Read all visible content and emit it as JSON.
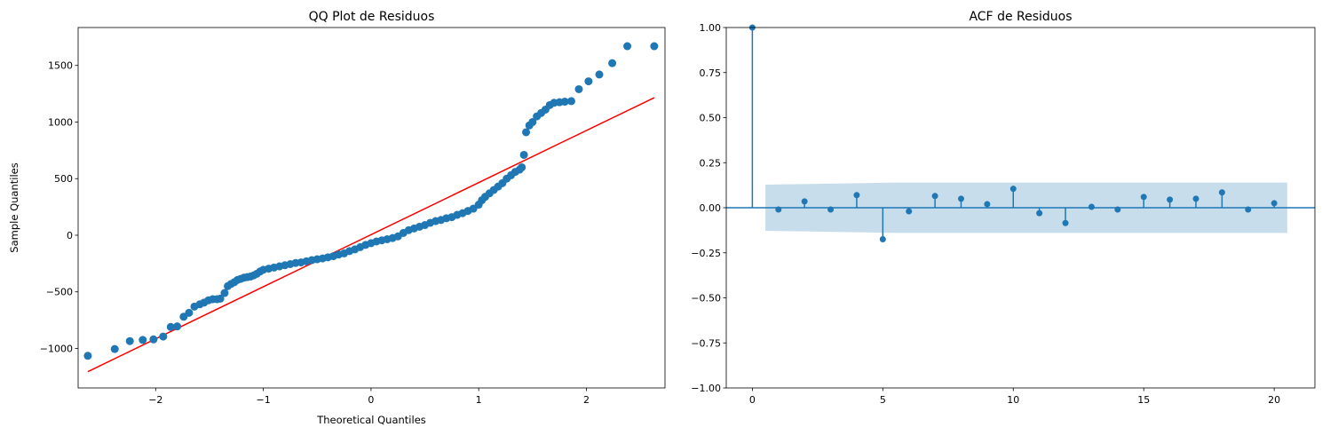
{
  "chart_data": [
    {
      "type": "scatter",
      "title": "QQ Plot de Residuos",
      "x_label": "Theoretical Quantiles",
      "y_label": "Sample Quantiles",
      "color": "#1f77b4",
      "x": [
        -2.63,
        -2.38,
        -2.24,
        -2.12,
        -2.02,
        -1.93,
        -1.86,
        -1.8,
        -1.74,
        -1.69,
        -1.64,
        -1.59,
        -1.55,
        -1.51,
        -1.47,
        -1.43,
        -1.4,
        -1.36,
        -1.33,
        -1.3,
        -1.27,
        -1.24,
        -1.21,
        -1.18,
        -1.15,
        -1.12,
        -1.09,
        -1.06,
        -1.03,
        -1.0,
        -0.95,
        -0.9,
        -0.85,
        -0.8,
        -0.75,
        -0.7,
        -0.65,
        -0.6,
        -0.55,
        -0.5,
        -0.45,
        -0.4,
        -0.35,
        -0.3,
        -0.25,
        -0.2,
        -0.15,
        -0.1,
        -0.05,
        0.0,
        0.05,
        0.1,
        0.15,
        0.2,
        0.25,
        0.3,
        0.35,
        0.4,
        0.45,
        0.5,
        0.55,
        0.6,
        0.65,
        0.7,
        0.75,
        0.8,
        0.85,
        0.9,
        0.95,
        1.0,
        1.03,
        1.06,
        1.1,
        1.14,
        1.18,
        1.22,
        1.26,
        1.3,
        1.34,
        1.38,
        1.4,
        1.42,
        1.44,
        1.47,
        1.5,
        1.54,
        1.58,
        1.62,
        1.66,
        1.7,
        1.75,
        1.8,
        1.86,
        1.93,
        2.02,
        2.12,
        2.24,
        2.38,
        2.63
      ],
      "values": [
        -1065,
        -1005,
        -935,
        -925,
        -920,
        -895,
        -810,
        -805,
        -720,
        -685,
        -630,
        -610,
        -595,
        -575,
        -565,
        -565,
        -560,
        -510,
        -450,
        -430,
        -415,
        -395,
        -385,
        -375,
        -370,
        -365,
        -355,
        -340,
        -320,
        -305,
        -295,
        -285,
        -275,
        -265,
        -255,
        -245,
        -240,
        -230,
        -220,
        -212,
        -205,
        -195,
        -185,
        -170,
        -160,
        -140,
        -125,
        -105,
        -85,
        -70,
        -55,
        -45,
        -35,
        -25,
        -10,
        20,
        45,
        60,
        75,
        90,
        110,
        125,
        135,
        150,
        160,
        180,
        195,
        215,
        235,
        270,
        310,
        340,
        370,
        400,
        430,
        460,
        500,
        530,
        560,
        580,
        600,
        710,
        910,
        970,
        1000,
        1050,
        1080,
        1110,
        1150,
        1170,
        1175,
        1180,
        1185,
        1290,
        1360,
        1420,
        1520,
        1670,
        1670
      ],
      "fit_line": {
        "x": [
          -2.63,
          2.63
        ],
        "values": [
          -1205,
          1215
        ],
        "color": "#ff0000"
      },
      "xlim": [
        -2.72,
        2.73
      ],
      "ylim": [
        -1349,
        1835
      ],
      "xticks": [
        {
          "value": -2,
          "label": "−2"
        },
        {
          "value": -1,
          "label": "−1"
        },
        0,
        1,
        2
      ],
      "yticks": [
        {
          "value": -1000,
          "label": "−1000"
        },
        {
          "value": -500,
          "label": "−500"
        },
        0,
        500,
        1000,
        1500
      ]
    },
    {
      "type": "stem",
      "title": "ACF de Residuos",
      "color": "#1f77b4",
      "x": [
        0,
        1,
        2,
        3,
        4,
        5,
        6,
        7,
        8,
        9,
        10,
        11,
        12,
        13,
        14,
        15,
        16,
        17,
        18,
        19,
        20
      ],
      "values": [
        1,
        -0.01,
        0.035,
        -0.01,
        0.07,
        -0.175,
        -0.02,
        0.065,
        0.05,
        0.02,
        0.105,
        -0.03,
        -0.085,
        0.005,
        -0.01,
        0.06,
        0.045,
        0.05,
        0.085,
        -0.01,
        0.025
      ],
      "confidence_band": {
        "x": [
          0.5,
          5.5,
          20.5
        ],
        "upper": [
          0.128,
          0.14,
          0.14
        ],
        "lower": [
          -0.128,
          -0.14,
          -0.14
        ]
      },
      "xlim": [
        -1,
        21.56
      ],
      "ylim": [
        -1,
        1
      ],
      "xticks": [
        0,
        5,
        10,
        15,
        20
      ],
      "yticks": [
        {
          "value": -1,
          "label": "−1.00"
        },
        {
          "value": -0.75,
          "label": "−0.75"
        },
        {
          "value": -0.5,
          "label": "−0.50"
        },
        {
          "value": -0.25,
          "label": "−0.25"
        },
        {
          "value": 0,
          "label": "0.00"
        },
        {
          "value": 0.25,
          "label": "0.25"
        },
        {
          "value": 0.5,
          "label": "0.50"
        },
        {
          "value": 0.75,
          "label": "0.75"
        },
        {
          "value": 1,
          "label": "1.00"
        }
      ]
    }
  ]
}
